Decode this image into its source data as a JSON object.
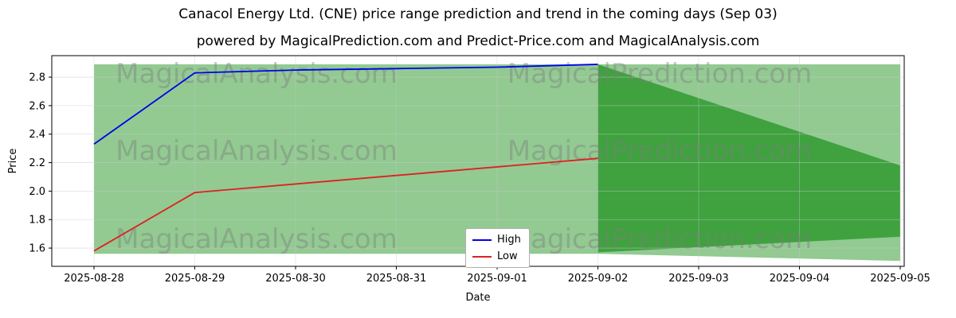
{
  "title": "Canacol Energy Ltd. (CNE) price range prediction and trend in the coming days (Sep 03)",
  "subtitle": "powered by MagicalPrediction.com and Predict-Price.com and MagicalAnalysis.com",
  "watermarks": {
    "left": "MagicalAnalysis.com",
    "right": "MagicalPrediction.com"
  },
  "legend": {
    "high_label": "High",
    "low_label": "Low"
  },
  "axes": {
    "x_label": "Date",
    "y_label": "Price",
    "y_ticks": [
      1.6,
      1.8,
      2.0,
      2.2,
      2.4,
      2.6,
      2.8
    ]
  },
  "colors": {
    "high_line": "#0000ee",
    "low_line": "#e02020",
    "outer_band": "#92ca92",
    "inner_band": "#3fa23f",
    "grid": "#c9c9c9",
    "watermark": "#7d7d7d"
  },
  "chart_data": {
    "type": "line",
    "title": "Canacol Energy Ltd. (CNE) price range prediction and trend in the coming days (Sep 03)",
    "xlabel": "Date",
    "ylabel": "Price",
    "x": [
      "2025-08-28",
      "2025-08-29",
      "2025-08-30",
      "2025-08-31",
      "2025-09-01",
      "2025-09-02",
      "2025-09-03",
      "2025-09-04",
      "2025-09-05"
    ],
    "ylim": [
      1.472,
      2.951
    ],
    "grid": true,
    "legend_position": "bottom-center",
    "series": [
      {
        "name": "High",
        "color": "#0000ee",
        "values": [
          2.33,
          2.83,
          2.85,
          2.86,
          2.87,
          2.89,
          null,
          null,
          null
        ]
      },
      {
        "name": "Low",
        "color": "#e02020",
        "values": [
          1.58,
          1.99,
          2.05,
          2.11,
          2.17,
          2.23,
          null,
          null,
          null
        ]
      }
    ],
    "bands": {
      "outer": {
        "label": "overall price range band",
        "color": "#92ca92",
        "x": [
          "2025-08-28",
          "2025-09-02",
          "2025-09-05"
        ],
        "top": [
          2.89,
          2.89,
          2.89
        ],
        "bottom": [
          1.56,
          1.56,
          1.51
        ]
      },
      "inner": {
        "label": "prediction range band (Sep 03 onward trend)",
        "color": "#3fa23f",
        "x": [
          "2025-09-02",
          "2025-09-05"
        ],
        "top": [
          2.89,
          2.18
        ],
        "bottom": [
          1.57,
          1.68
        ]
      }
    }
  }
}
